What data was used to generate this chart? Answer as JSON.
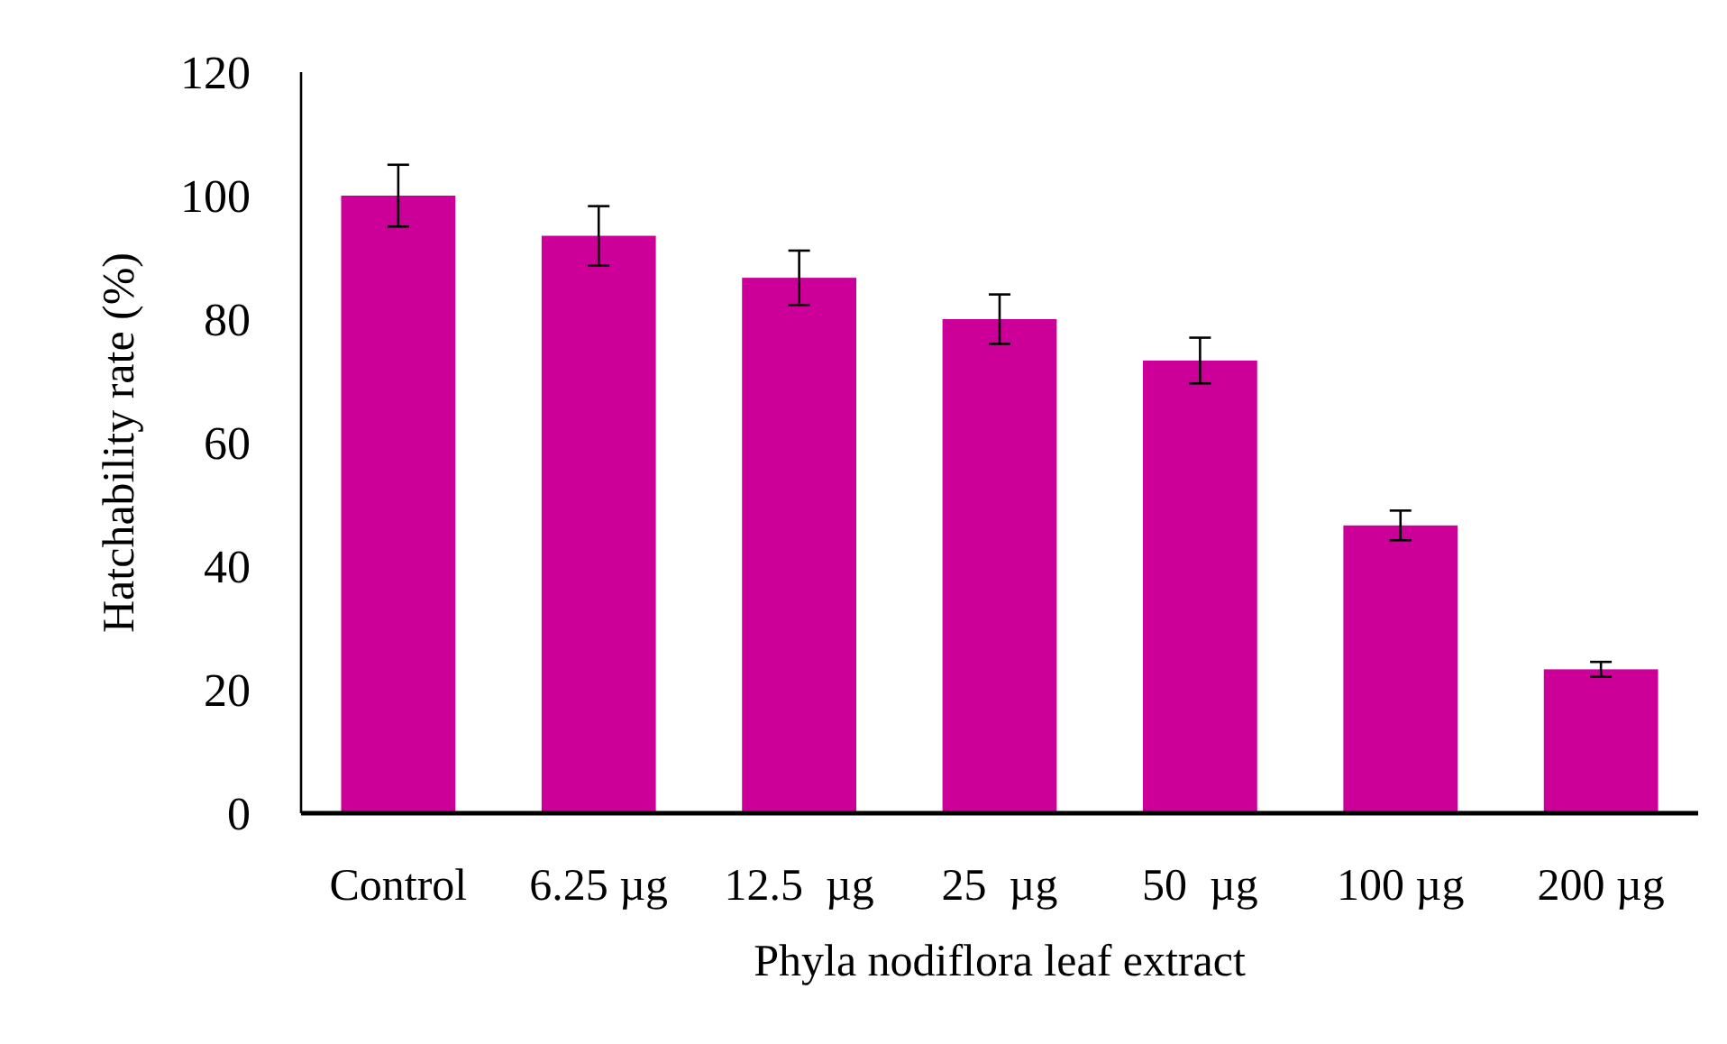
{
  "chart_data": {
    "type": "bar",
    "xlabel": "Phyla nodiflora leaf extract",
    "ylabel": "Hatchability rate (%)",
    "categories": [
      "Control",
      "6.25 µg",
      "12.5  µg",
      "25  µg",
      "50  µg",
      "100 µg",
      "200 µg"
    ],
    "values": [
      100,
      93.5,
      86.7,
      80,
      73.3,
      46.6,
      23.3
    ],
    "errors": [
      5,
      4.8,
      4.4,
      4,
      3.7,
      2.4,
      1.2
    ],
    "color": "#cc0099",
    "ylim": [
      0,
      120
    ],
    "yticks": [
      0,
      20,
      40,
      60,
      80,
      100,
      120
    ],
    "grid": false
  }
}
